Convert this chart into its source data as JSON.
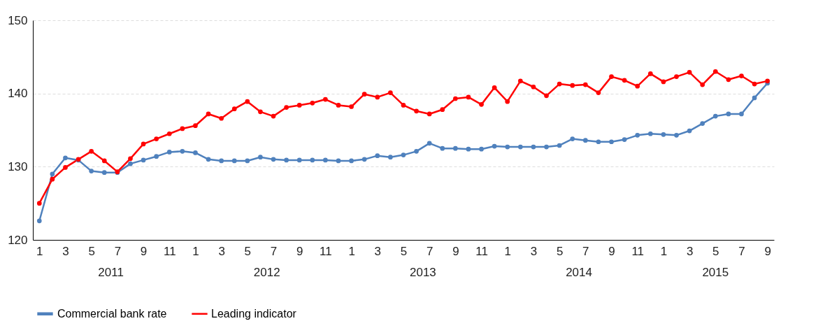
{
  "chart_data": {
    "type": "line",
    "categories": [
      "1",
      null,
      "3",
      null,
      "5",
      null,
      "7",
      null,
      "9",
      null,
      "11",
      null,
      "1",
      null,
      "3",
      null,
      "5",
      null,
      "7",
      null,
      "9",
      null,
      "11",
      null,
      "1",
      null,
      "3",
      null,
      "5",
      null,
      "7",
      null,
      "9",
      null,
      "11",
      null,
      "1",
      null,
      "3",
      null,
      "5",
      null,
      "7",
      null,
      "9",
      null,
      "11",
      null,
      "1",
      null,
      "3",
      null,
      "5",
      null,
      "7",
      null,
      "9"
    ],
    "annotations": [
      "2011",
      "2012",
      "2013",
      "2014",
      "2015"
    ],
    "series": [
      {
        "name": "Commercial bank rate",
        "color": "#4f81bd",
        "values": [
          122.6,
          129.0,
          131.2,
          130.9,
          129.4,
          129.2,
          129.2,
          130.4,
          130.9,
          131.4,
          132.0,
          132.1,
          131.9,
          131.0,
          130.8,
          130.8,
          130.8,
          131.3,
          131.0,
          130.9,
          130.9,
          130.9,
          130.9,
          130.8,
          130.8,
          131.0,
          131.5,
          131.3,
          131.6,
          132.1,
          133.2,
          132.5,
          132.5,
          132.4,
          132.4,
          132.8,
          132.7,
          132.7,
          132.7,
          132.7,
          132.9,
          133.8,
          133.6,
          133.4,
          133.4,
          133.7,
          134.3,
          134.5,
          134.4,
          134.3,
          134.9,
          135.9,
          136.9,
          137.2,
          137.2,
          139.4,
          141.4
        ]
      },
      {
        "name": "Leading indicator",
        "color": "#ff0000",
        "values": [
          125.0,
          128.3,
          129.9,
          131.0,
          132.1,
          130.8,
          129.3,
          131.1,
          133.1,
          133.8,
          134.5,
          135.2,
          135.6,
          137.2,
          136.6,
          137.9,
          138.9,
          137.5,
          136.9,
          138.1,
          138.4,
          138.7,
          139.2,
          138.4,
          138.2,
          139.9,
          139.5,
          140.1,
          138.4,
          137.6,
          137.2,
          137.8,
          139.3,
          139.5,
          138.5,
          140.8,
          138.9,
          141.7,
          140.9,
          139.7,
          141.3,
          141.1,
          141.2,
          140.1,
          142.3,
          141.8,
          141.0,
          142.7,
          141.6,
          142.3,
          142.9,
          141.2,
          143.0,
          141.9,
          142.4,
          141.3,
          141.7
        ]
      }
    ],
    "ylim": [
      120,
      150
    ],
    "yticks": [
      120,
      130,
      140,
      150
    ],
    "grid": "y",
    "legend": "bottom",
    "marker": "circle",
    "line_style": "solid"
  }
}
